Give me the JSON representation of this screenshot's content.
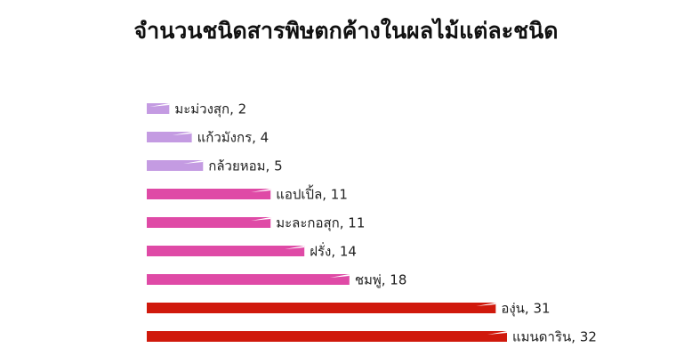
{
  "chart_data": {
    "type": "bar",
    "orientation": "horizontal",
    "title": "จำนวนชนิดสารพิษตกค้างในผลไม้แต่ละชนิด",
    "values": [
      2,
      4,
      5,
      11,
      11,
      14,
      18,
      31,
      32
    ],
    "value_labels": [
      "มะม่วงสุก, 2",
      "แก้วมังกร, 4",
      "กล้วยหอม, 5",
      "แอปเปิ้ล, 11",
      "มะละกอสุก, 11",
      "ฝรั่ง, 14",
      "ชมพู่, 18",
      "องุ่น, 31",
      "แมนดาริน, 32"
    ],
    "colors": [
      "#c49be2",
      "#c49be2",
      "#c49be2",
      "#df4aa6",
      "#df4aa6",
      "#df4aa6",
      "#df4aa6",
      "#d0190c",
      "#d0190c"
    ]
  }
}
